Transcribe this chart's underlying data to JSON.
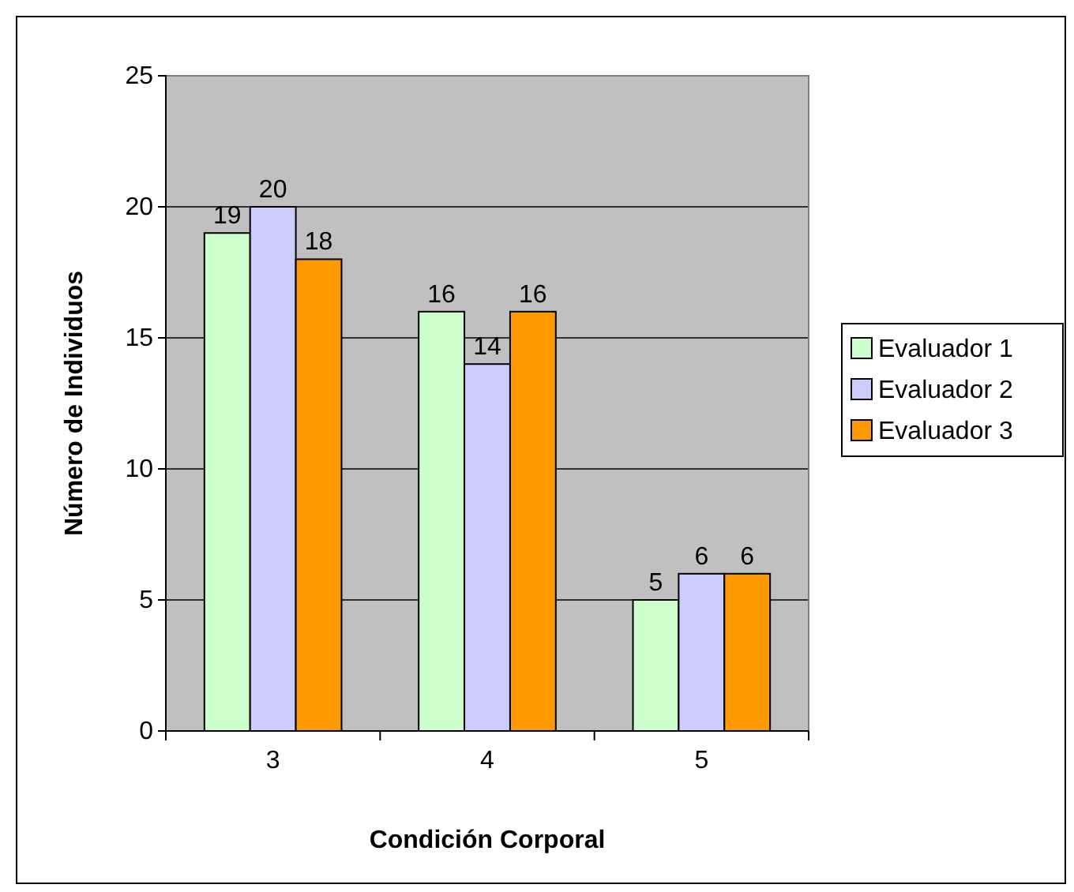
{
  "chart_data": {
    "type": "bar",
    "xlabel": "Condición Corporal",
    "ylabel": "Número de Individuos",
    "categories": [
      "3",
      "4",
      "5"
    ],
    "series": [
      {
        "name": "Evaluador 1",
        "color": "#ccffcc",
        "values": [
          19,
          16,
          5
        ]
      },
      {
        "name": "Evaluador 2",
        "color": "#ccccff",
        "values": [
          20,
          14,
          6
        ]
      },
      {
        "name": "Evaluador 3",
        "color": "#ff9900",
        "values": [
          18,
          16,
          6
        ]
      }
    ],
    "ylim": [
      0,
      25
    ],
    "yticks": [
      0,
      5,
      10,
      15,
      20,
      25
    ],
    "grid": "y",
    "legend": "right",
    "data_labels": true
  }
}
